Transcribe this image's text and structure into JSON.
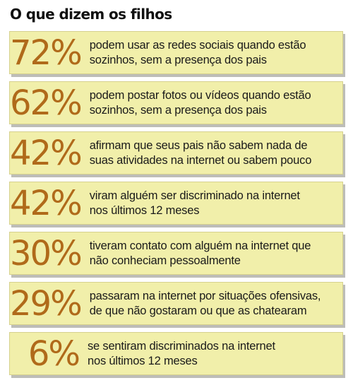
{
  "title": "O que dizem os filhos",
  "colors": {
    "card_background": "#f1efaa",
    "percentage": "#b06a1a",
    "text": "#1a1a1a"
  },
  "stats": [
    {
      "value": "72%",
      "line1": "podem usar as redes sociais quando estão",
      "line2": "sozinhos, sem a presença dos pais"
    },
    {
      "value": "62%",
      "line1": "podem postar fotos ou vídeos quando estão",
      "line2": "sozinhos, sem a presença dos pais"
    },
    {
      "value": "42%",
      "line1": "afirmam que seus pais não sabem nada de",
      "line2": "suas atividades na internet ou sabem pouco"
    },
    {
      "value": "42%",
      "line1": "viram alguém ser discriminado na internet",
      "line2": "nos últimos 12 meses"
    },
    {
      "value": "30%",
      "line1": "tiveram contato com alguém na internet que",
      "line2": "não conheciam pessoalmente"
    },
    {
      "value": "29%",
      "line1": "passaram na internet por situações ofensivas,",
      "line2": "de que não gostaram ou que as chatearam"
    },
    {
      "value": "6%",
      "line1": "se sentiram discriminados na internet",
      "line2": "nos últimos 12 meses"
    }
  ]
}
